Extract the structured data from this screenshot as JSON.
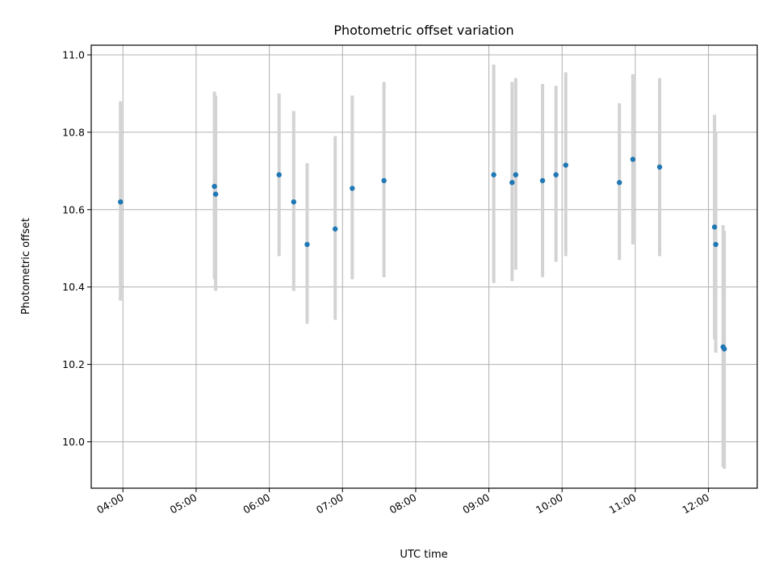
{
  "chart_data": {
    "type": "scatter",
    "title": "Photometric offset variation",
    "xlabel": "UTC time",
    "ylabel": "Photometric offset",
    "xlim": [
      "03:34",
      "12:40"
    ],
    "ylim": [
      9.88,
      11.025
    ],
    "grid": true,
    "xticks": [
      "04:00",
      "05:00",
      "06:00",
      "07:00",
      "08:00",
      "09:00",
      "10:00",
      "11:00",
      "12:00"
    ],
    "yticks": [
      10.0,
      10.2,
      10.4,
      10.6,
      10.8,
      11.0
    ],
    "ytick_labels": [
      "10.0",
      "10.2",
      "10.4",
      "10.6",
      "10.8",
      "11.0"
    ],
    "colors": {
      "point": "#1f77b4",
      "errorbar": "#d3d3d3",
      "grid": "#b0b0b0"
    },
    "series": [
      {
        "points": [
          {
            "x": "03:58",
            "y": 10.62,
            "ylow": 10.365,
            "yhigh": 10.88
          },
          {
            "x": "05:15",
            "y": 10.66,
            "ylow": 10.42,
            "yhigh": 10.905
          },
          {
            "x": "05:16",
            "y": 10.64,
            "ylow": 10.39,
            "yhigh": 10.895
          },
          {
            "x": "06:08",
            "y": 10.69,
            "ylow": 10.48,
            "yhigh": 10.9
          },
          {
            "x": "06:20",
            "y": 10.62,
            "ylow": 10.39,
            "yhigh": 10.855
          },
          {
            "x": "06:31",
            "y": 10.51,
            "ylow": 10.305,
            "yhigh": 10.72
          },
          {
            "x": "06:54",
            "y": 10.55,
            "ylow": 10.315,
            "yhigh": 10.79
          },
          {
            "x": "07:08",
            "y": 10.655,
            "ylow": 10.42,
            "yhigh": 10.895
          },
          {
            "x": "07:34",
            "y": 10.675,
            "ylow": 10.425,
            "yhigh": 10.93
          },
          {
            "x": "09:04",
            "y": 10.69,
            "ylow": 10.41,
            "yhigh": 10.975
          },
          {
            "x": "09:19",
            "y": 10.67,
            "ylow": 10.415,
            "yhigh": 10.93
          },
          {
            "x": "09:22",
            "y": 10.69,
            "ylow": 10.445,
            "yhigh": 10.94
          },
          {
            "x": "09:44",
            "y": 10.675,
            "ylow": 10.425,
            "yhigh": 10.925
          },
          {
            "x": "09:55",
            "y": 10.69,
            "ylow": 10.465,
            "yhigh": 10.92
          },
          {
            "x": "10:03",
            "y": 10.715,
            "ylow": 10.48,
            "yhigh": 10.955
          },
          {
            "x": "10:47",
            "y": 10.67,
            "ylow": 10.47,
            "yhigh": 10.875
          },
          {
            "x": "10:58",
            "y": 10.73,
            "ylow": 10.51,
            "yhigh": 10.95
          },
          {
            "x": "11:20",
            "y": 10.71,
            "ylow": 10.48,
            "yhigh": 10.94
          },
          {
            "x": "12:05",
            "y": 10.555,
            "ylow": 10.265,
            "yhigh": 10.845
          },
          {
            "x": "12:06",
            "y": 10.51,
            "ylow": 10.23,
            "yhigh": 10.8
          },
          {
            "x": "12:12",
            "y": 10.245,
            "ylow": 9.935,
            "yhigh": 10.56
          },
          {
            "x": "12:13",
            "y": 10.24,
            "ylow": 9.93,
            "yhigh": 10.545
          }
        ]
      }
    ]
  }
}
